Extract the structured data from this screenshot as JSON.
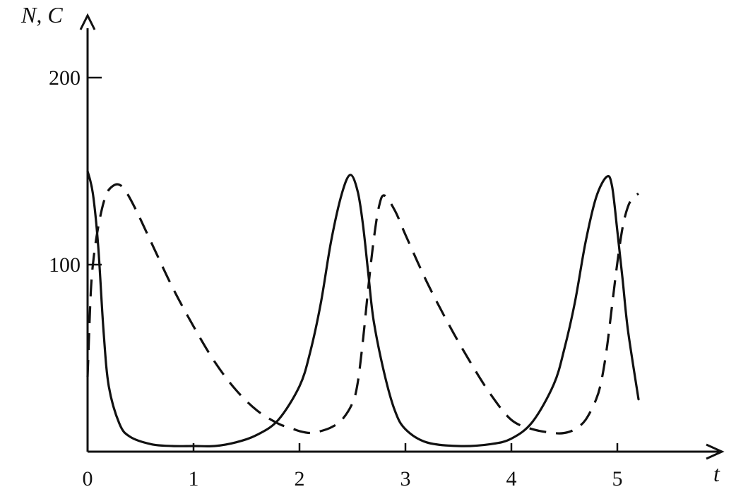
{
  "chart_data": {
    "type": "line",
    "title": "",
    "xlabel": "t",
    "ylabel": "N, C",
    "xlim": [
      0,
      5.6
    ],
    "ylim": [
      0,
      200
    ],
    "x_ticks": [
      0,
      1,
      2,
      3,
      4,
      5
    ],
    "x_tick_labels": [
      "0",
      "1",
      "2",
      "3",
      "4",
      "5"
    ],
    "y_ticks": [
      100,
      200
    ],
    "y_tick_labels": [
      "100",
      "200"
    ],
    "grid": false,
    "legend": "none",
    "series": [
      {
        "style": "solid",
        "color": "#111111",
        "x": [
          0,
          0.05,
          0.1,
          0.15,
          0.2,
          0.3,
          0.4,
          0.6,
          0.8,
          1.0,
          1.2,
          1.4,
          1.6,
          1.8,
          2.0,
          2.1,
          2.2,
          2.3,
          2.4,
          2.48,
          2.55,
          2.6,
          2.65,
          2.7,
          2.8,
          2.9,
          3.0,
          3.2,
          3.5,
          3.8,
          4.0,
          4.2,
          4.4,
          4.5,
          4.6,
          4.7,
          4.8,
          4.9,
          4.95,
          5.0,
          5.05,
          5.1,
          5.2
        ],
        "y": [
          150,
          138,
          110,
          65,
          35,
          15,
          8,
          4,
          3,
          3,
          3,
          5,
          9,
          17,
          35,
          53,
          79,
          113,
          138,
          148,
          139,
          121,
          95,
          70,
          42,
          22,
          12,
          5,
          3,
          4,
          7,
          16,
          36,
          55,
          80,
          112,
          136,
          147,
          142,
          118,
          92,
          65,
          28
        ]
      },
      {
        "style": "dashed",
        "color": "#111111",
        "x": [
          0,
          0.03,
          0.06,
          0.1,
          0.15,
          0.2,
          0.28,
          0.35,
          0.45,
          0.6,
          0.8,
          1.0,
          1.2,
          1.4,
          1.6,
          1.8,
          1.9,
          2.0,
          2.1,
          2.2,
          2.3,
          2.4,
          2.5,
          2.55,
          2.6,
          2.65,
          2.7,
          2.75,
          2.8,
          2.9,
          3.0,
          3.2,
          3.4,
          3.6,
          3.8,
          4.0,
          4.2,
          4.4,
          4.5,
          4.6,
          4.7,
          4.8,
          4.85,
          4.9,
          4.95,
          5.0,
          5.05,
          5.1,
          5.15,
          5.2
        ],
        "y": [
          40,
          85,
          105,
          120,
          133,
          140,
          143,
          140,
          130,
          112,
          88,
          67,
          48,
          33,
          22,
          15,
          13,
          11,
          10,
          11,
          13,
          17,
          26,
          37,
          60,
          88,
          113,
          131,
          137,
          129,
          116,
          91,
          69,
          49,
          31,
          17,
          12,
          10,
          10,
          12,
          17,
          28,
          38,
          55,
          78,
          101,
          120,
          131,
          136,
          138
        ]
      }
    ]
  }
}
